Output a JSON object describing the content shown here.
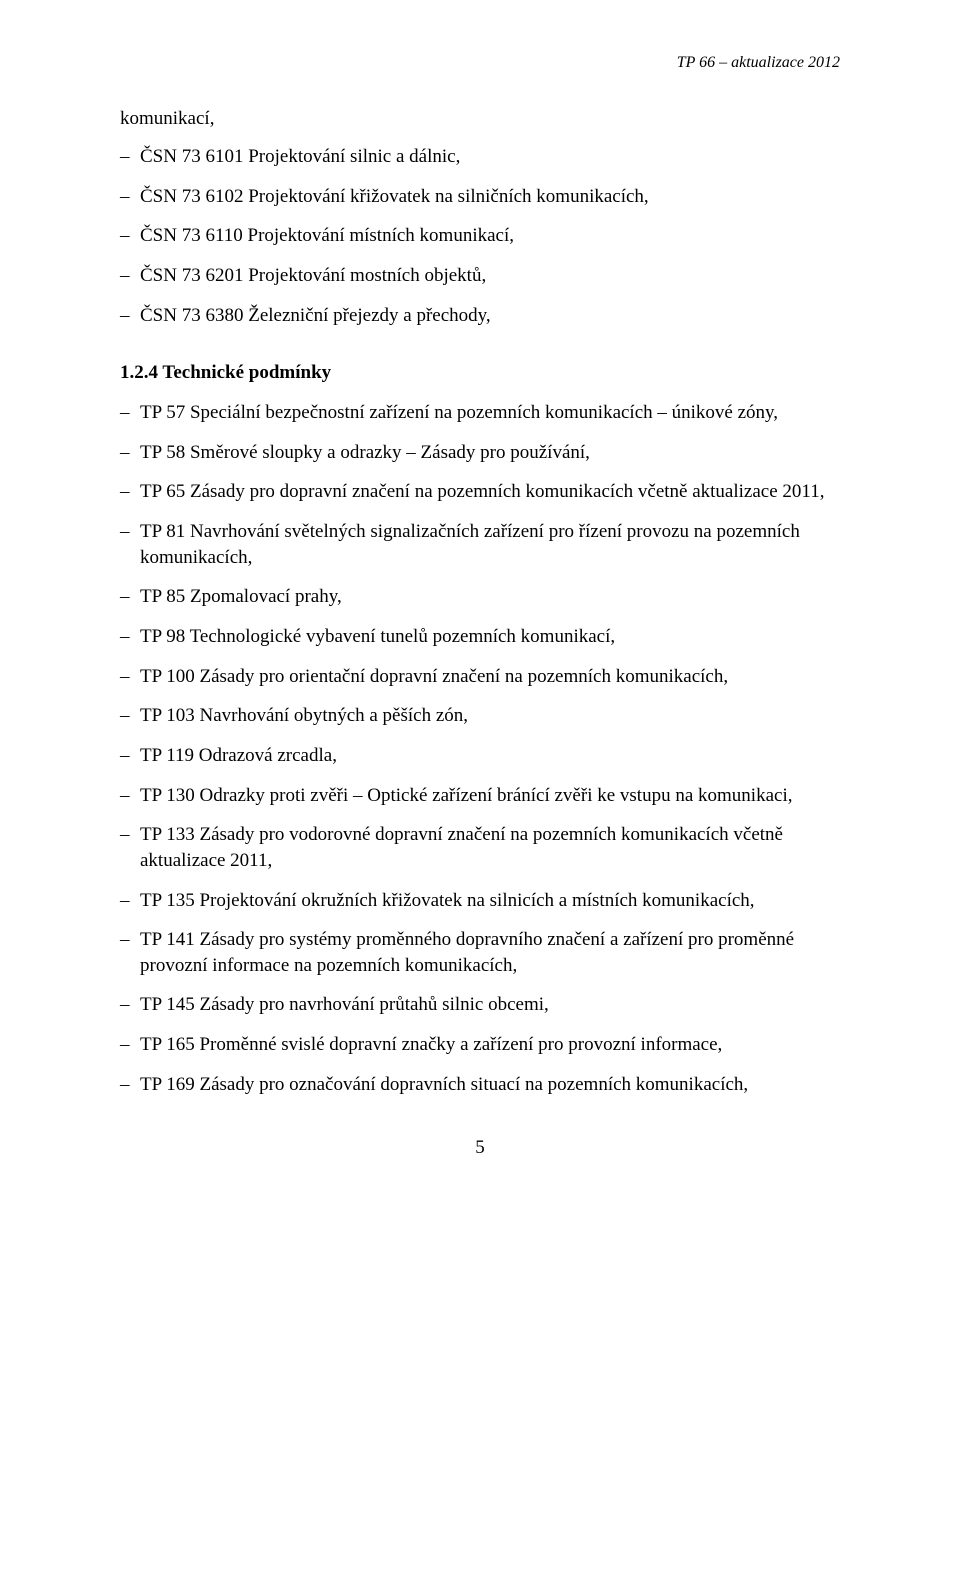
{
  "header_text": "TP 66 – aktualizace 2012",
  "orphan_line": "komunikací,",
  "csn_list": [
    "ČSN 73 6101 Projektování silnic a dálnic,",
    "ČSN 73 6102 Projektování křižovatek na silničních komunikacích,",
    "ČSN 73 6110 Projektování místních komunikací,",
    "ČSN 73 6201 Projektování mostních objektů,",
    "ČSN 73 6380 Železniční přejezdy a přechody,"
  ],
  "section_heading": "1.2.4  Technické podmínky",
  "tp_list": [
    "TP 57  Speciální bezpečnostní zařízení na pozemních komunikacích – únikové zóny,",
    "TP 58  Směrové sloupky a odrazky – Zásady pro používání,",
    "TP 65 Zásady pro dopravní značení na pozemních komunikacích včetně aktualizace 2011,",
    "TP 81 Navrhování světelných signalizačních zařízení pro řízení provozu na pozemních komunikacích,",
    "TP 85 Zpomalovací prahy,",
    "TP 98 Technologické vybavení tunelů pozemních komunikací,",
    "TP 100 Zásady pro orientační dopravní značení na pozemních komunikacích,",
    "TP 103  Navrhování obytných a pěších zón,",
    "TP 119 Odrazová zrcadla,",
    "TP 130 Odrazky proti zvěři – Optické zařízení bránící zvěři ke vstupu na komunikaci,",
    "TP 133 Zásady pro vodorovné dopravní značení na pozemních komunikacích včetně aktualizace 2011,",
    "TP 135  Projektování okružních křižovatek na silnicích a místních komunikacích,",
    "TP 141 Zásady pro systémy proměnného dopravního značení a zařízení pro proměnné provozní informace na pozemních komunikacích,",
    "TP 145 Zásady pro navrhování průtahů silnic obcemi,",
    "TP 165 Proměnné svislé dopravní značky a zařízení pro provozní informace,",
    "TP 169 Zásady pro označování dopravních situací na pozemních komunikacích,"
  ],
  "page_number": "5",
  "colors": {
    "text": "#000000",
    "background": "#ffffff"
  },
  "fonts": {
    "body_family": "Times New Roman",
    "body_size_pt": 14,
    "header_style": "italic"
  }
}
